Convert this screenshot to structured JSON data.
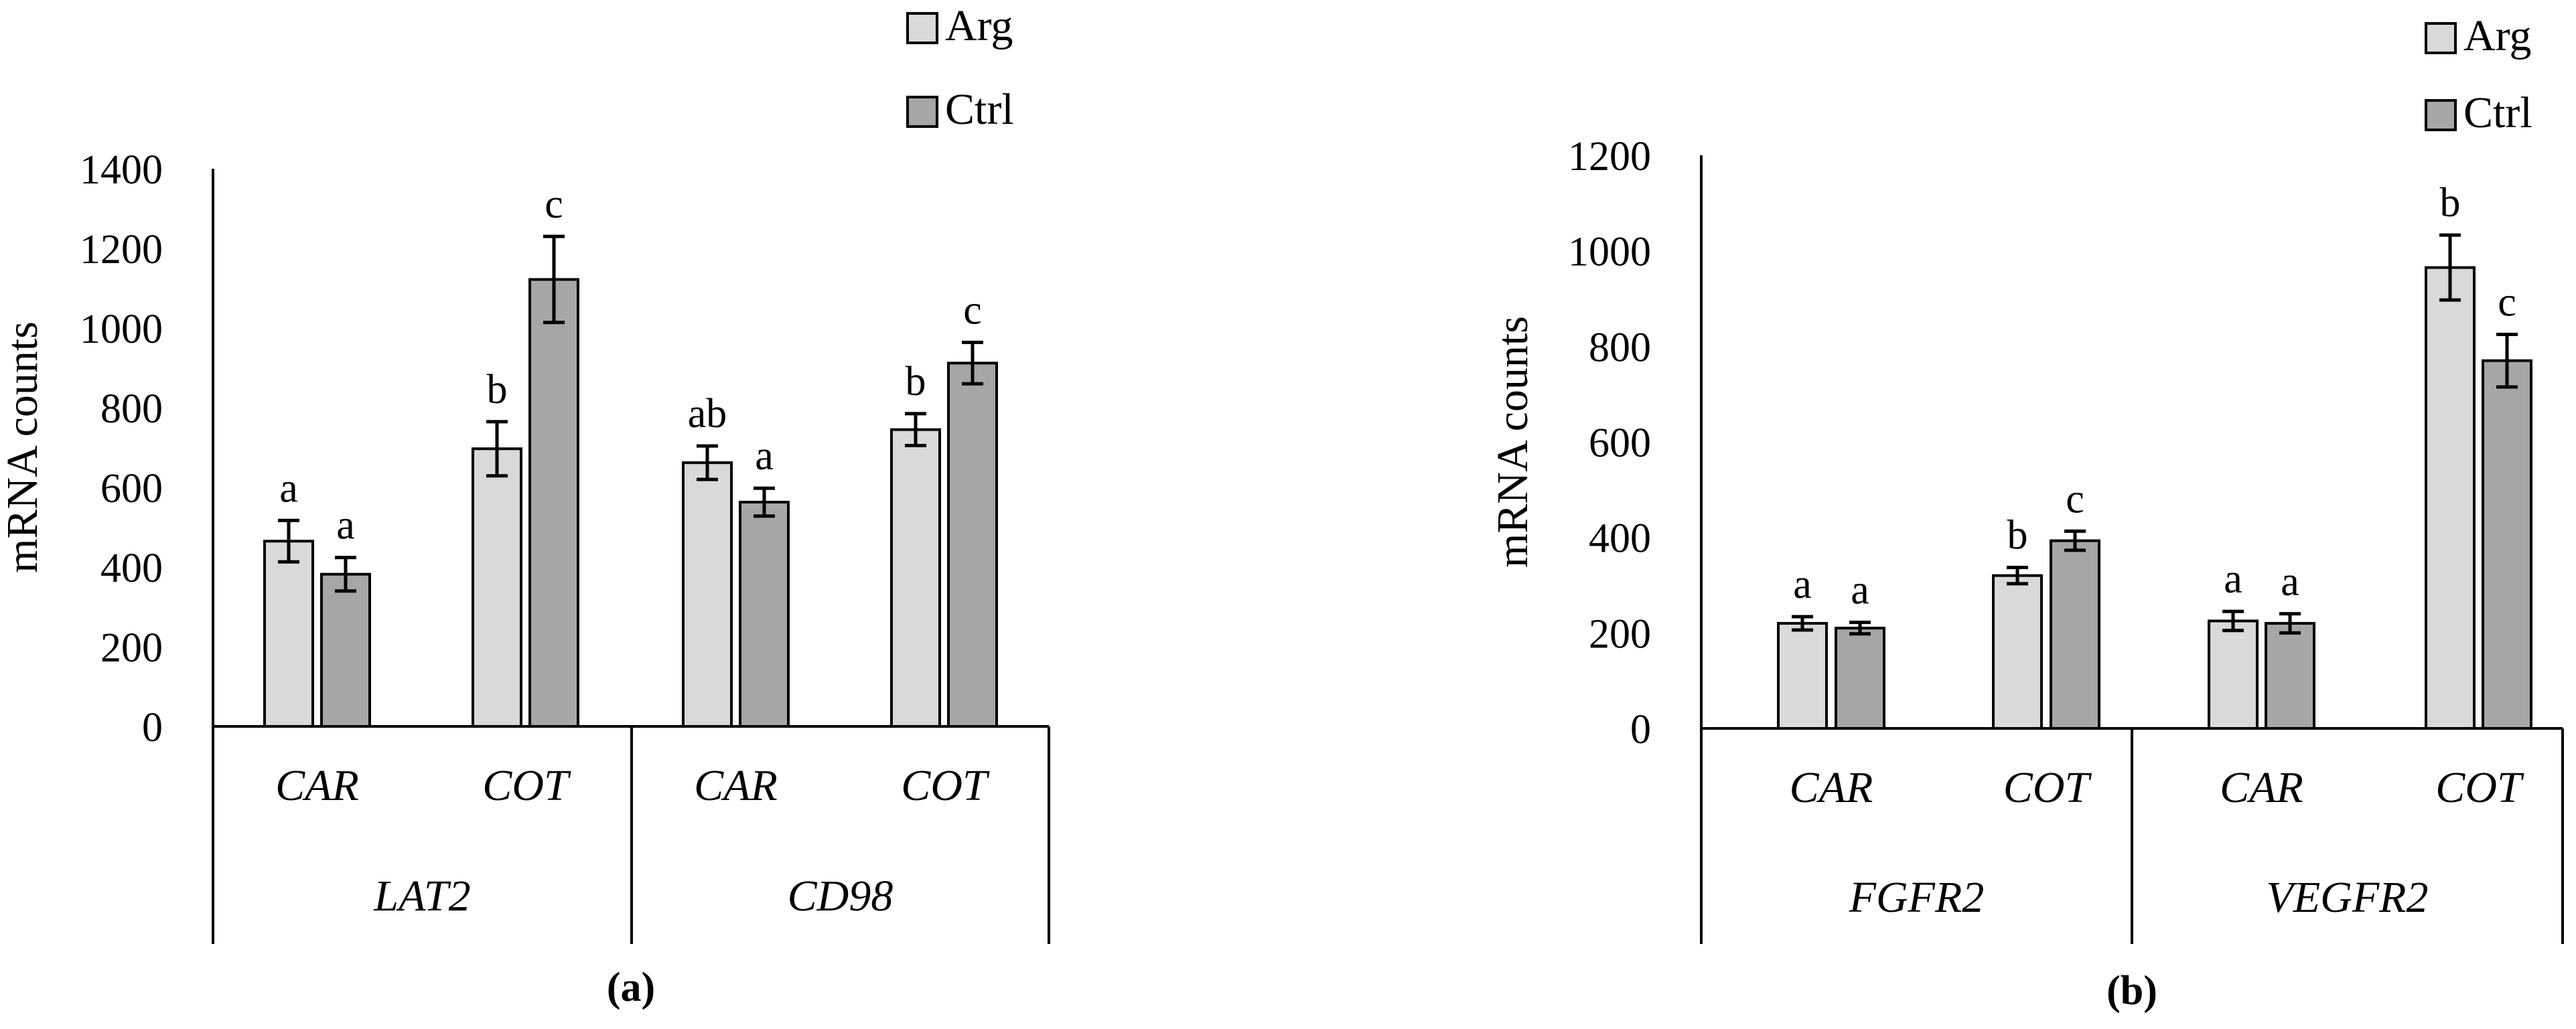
{
  "colors": {
    "arg": "#d9d9d9",
    "ctrl": "#a6a6a6",
    "axis": "#000000"
  },
  "chart_data": [
    {
      "panel_label": "(a)",
      "type": "bar",
      "ylabel": "mRNA counts",
      "ylim": [
        0,
        1400
      ],
      "yticks": [
        0,
        200,
        400,
        600,
        800,
        1000,
        1200,
        1400
      ],
      "legend": {
        "position": "top-right",
        "entries": [
          "Arg",
          "Ctrl"
        ]
      },
      "groups": [
        {
          "name": "LAT2",
          "categories": [
            {
              "name": "CAR",
              "arg": 465,
              "arg_err": 52,
              "arg_letter": "a",
              "ctrl": 382,
              "ctrl_err": 42,
              "ctrl_letter": "a"
            },
            {
              "name": "COT",
              "arg": 697,
              "arg_err": 68,
              "arg_letter": "b",
              "ctrl": 1122,
              "ctrl_err": 108,
              "ctrl_letter": "c"
            }
          ]
        },
        {
          "name": "CD98",
          "categories": [
            {
              "name": "CAR",
              "arg": 662,
              "arg_err": 42,
              "arg_letter": "ab",
              "ctrl": 563,
              "ctrl_err": 35,
              "ctrl_letter": "a"
            },
            {
              "name": "COT",
              "arg": 745,
              "arg_err": 40,
              "arg_letter": "b",
              "ctrl": 912,
              "ctrl_err": 52,
              "ctrl_letter": "c"
            }
          ]
        }
      ]
    },
    {
      "panel_label": "(b)",
      "type": "bar",
      "ylabel": "mRNA counts",
      "ylim": [
        0,
        1200
      ],
      "yticks": [
        0,
        200,
        400,
        600,
        800,
        1000,
        1200
      ],
      "legend": {
        "position": "top-right",
        "entries": [
          "Arg",
          "Ctrl"
        ]
      },
      "groups": [
        {
          "name": "FGFR2",
          "categories": [
            {
              "name": "CAR",
              "arg": 220,
              "arg_err": 14,
              "arg_letter": "a",
              "ctrl": 210,
              "ctrl_err": 12,
              "ctrl_letter": "a"
            },
            {
              "name": "COT",
              "arg": 320,
              "arg_err": 17,
              "arg_letter": "b",
              "ctrl": 393,
              "ctrl_err": 20,
              "ctrl_letter": "c"
            }
          ]
        },
        {
          "name": "VEGFR2",
          "categories": [
            {
              "name": "CAR",
              "arg": 225,
              "arg_err": 20,
              "arg_letter": "a",
              "ctrl": 220,
              "ctrl_err": 20,
              "ctrl_letter": "a"
            },
            {
              "name": "COT",
              "arg": 965,
              "arg_err": 68,
              "arg_letter": "b",
              "ctrl": 770,
              "ctrl_err": 55,
              "ctrl_letter": "c"
            }
          ]
        }
      ]
    }
  ]
}
